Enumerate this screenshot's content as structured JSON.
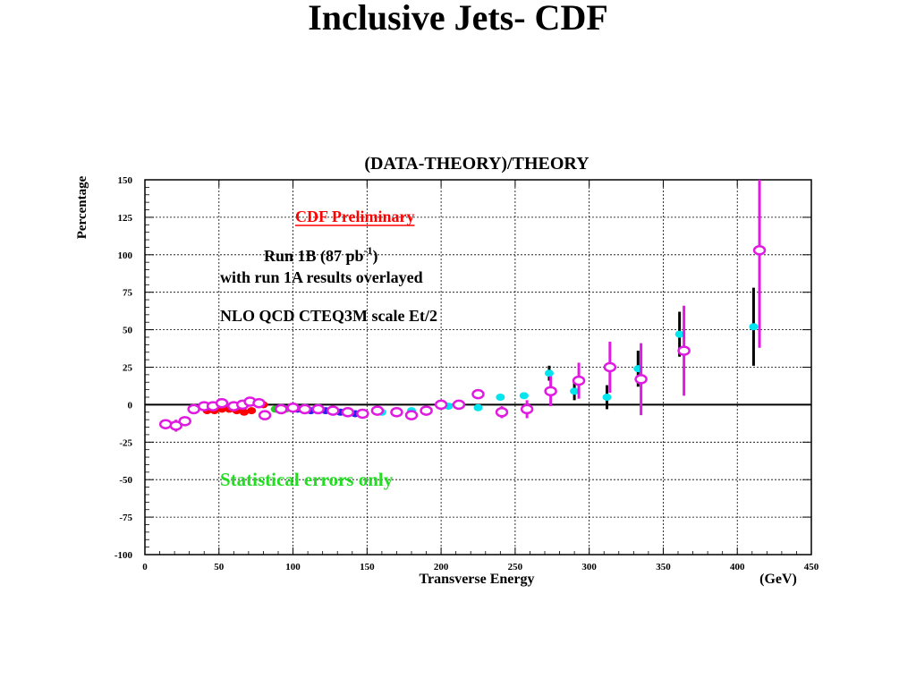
{
  "slide": {
    "title": "Inclusive Jets- CDF"
  },
  "colors": {
    "run1b_marker": "#00e5ee",
    "run1a_marker": "#e01ae0",
    "preliminary": "#ff0000",
    "statistical": "#22dd22"
  },
  "chart_data": {
    "type": "scatter",
    "title": "(DATA-THEORY)/THEORY",
    "xlabel": "Transverse Energy",
    "xunit": "(GeV)",
    "ylabel": "Percentage",
    "xlim": [
      0,
      450
    ],
    "ylim": [
      -100,
      150
    ],
    "x_ticks": [
      "0",
      "50",
      "100",
      "150",
      "200",
      "250",
      "300",
      "350",
      "400",
      "450"
    ],
    "y_ticks": [
      "-100",
      "-75",
      "-50",
      "-25",
      "0",
      "25",
      "50",
      "75",
      "100",
      "125",
      "150"
    ],
    "grid": true,
    "annotations": {
      "preliminary": "CDF Preliminary",
      "run_line_main": "Run 1B (87 pb",
      "run_line_sup": "-1",
      "run_line_end": ")",
      "overlay_note": "with run 1A results overlayed",
      "theory_note": "NLO QCD CTEQ3M  scale Et/2",
      "errors_note": "Statistical errors  only"
    },
    "series": [
      {
        "marker": "filled-circle",
        "points": [
          {
            "x": 42,
            "y": -4,
            "err": 2,
            "color": "#ff0000"
          },
          {
            "x": 47,
            "y": -4,
            "err": 2,
            "color": "#ff0000"
          },
          {
            "x": 52,
            "y": -3,
            "err": 2,
            "color": "#ff0000"
          },
          {
            "x": 57,
            "y": -3,
            "err": 2,
            "color": "#ff0000"
          },
          {
            "x": 62,
            "y": -4,
            "err": 2,
            "color": "#ff0000"
          },
          {
            "x": 67,
            "y": -5,
            "err": 2,
            "color": "#ff0000"
          },
          {
            "x": 72,
            "y": -4,
            "err": 2,
            "color": "#ff0000"
          },
          {
            "x": 77,
            "y": 1,
            "err": 2,
            "color": "#ff0000"
          },
          {
            "x": 80,
            "y": 0,
            "err": 2,
            "color": "#ff0000"
          },
          {
            "x": 88,
            "y": -3,
            "err": 1,
            "color": "#22cc22"
          },
          {
            "x": 95,
            "y": -3,
            "err": 1,
            "color": "#22cc22"
          },
          {
            "x": 103,
            "y": -3,
            "err": 1,
            "color": "#2222ee"
          },
          {
            "x": 112,
            "y": -4,
            "err": 1,
            "color": "#2222ee"
          },
          {
            "x": 122,
            "y": -4,
            "err": 1,
            "color": "#2222ee"
          },
          {
            "x": 132,
            "y": -5,
            "err": 1,
            "color": "#2222ee"
          },
          {
            "x": 142,
            "y": -6,
            "err": 1,
            "color": "#2222ee"
          },
          {
            "x": 160,
            "y": -5,
            "err": 1,
            "color": "#00e5ee"
          },
          {
            "x": 180,
            "y": -4,
            "err": 1,
            "color": "#00e5ee"
          },
          {
            "x": 205,
            "y": -1,
            "err": 1,
            "color": "#00e5ee"
          },
          {
            "x": 225,
            "y": -2,
            "err": 1,
            "color": "#00e5ee"
          },
          {
            "x": 240,
            "y": 5,
            "err": 1,
            "color": "#00e5ee"
          },
          {
            "x": 256,
            "y": 6,
            "err": 2,
            "color": "#00e5ee"
          },
          {
            "x": 273,
            "y": 21,
            "err": 5,
            "color": "#00e5ee"
          },
          {
            "x": 290,
            "y": 9,
            "err": 6,
            "color": "#00e5ee"
          },
          {
            "x": 312,
            "y": 5,
            "err": 8,
            "color": "#00e5ee"
          },
          {
            "x": 333,
            "y": 24,
            "err": 12,
            "color": "#00e5ee"
          },
          {
            "x": 361,
            "y": 47,
            "err": 15,
            "color": "#00e5ee"
          },
          {
            "x": 411,
            "y": 52,
            "err": 26,
            "color": "#00e5ee"
          }
        ]
      },
      {
        "marker": "open-circle",
        "points": [
          {
            "x": 14,
            "y": -13,
            "err": 2,
            "color": "#e01ae0"
          },
          {
            "x": 21,
            "y": -14,
            "err": 4,
            "color": "#e01ae0"
          },
          {
            "x": 27,
            "y": -11,
            "err": 3,
            "color": "#e01ae0"
          },
          {
            "x": 33,
            "y": -3,
            "err": 2,
            "color": "#e01ae0"
          },
          {
            "x": 40,
            "y": -1,
            "err": 2,
            "color": "#e01ae0"
          },
          {
            "x": 46,
            "y": -1,
            "err": 2,
            "color": "#e01ae0"
          },
          {
            "x": 52,
            "y": 1,
            "err": 2,
            "color": "#e01ae0"
          },
          {
            "x": 60,
            "y": -1,
            "err": 2,
            "color": "#e01ae0"
          },
          {
            "x": 66,
            "y": 0,
            "err": 2,
            "color": "#e01ae0"
          },
          {
            "x": 71,
            "y": 2,
            "err": 2,
            "color": "#e01ae0"
          },
          {
            "x": 77,
            "y": 1,
            "err": 2,
            "color": "#e01ae0"
          },
          {
            "x": 81,
            "y": -7,
            "err": 3,
            "color": "#e01ae0"
          },
          {
            "x": 92,
            "y": -3,
            "err": 2,
            "color": "#e01ae0"
          },
          {
            "x": 100,
            "y": -2,
            "err": 2,
            "color": "#e01ae0"
          },
          {
            "x": 108,
            "y": -3,
            "err": 2,
            "color": "#e01ae0"
          },
          {
            "x": 117,
            "y": -3,
            "err": 2,
            "color": "#e01ae0"
          },
          {
            "x": 127,
            "y": -4,
            "err": 2,
            "color": "#e01ae0"
          },
          {
            "x": 137,
            "y": -5,
            "err": 2,
            "color": "#e01ae0"
          },
          {
            "x": 147,
            "y": -6,
            "err": 2,
            "color": "#e01ae0"
          },
          {
            "x": 157,
            "y": -4,
            "err": 2,
            "color": "#e01ae0"
          },
          {
            "x": 170,
            "y": -5,
            "err": 2,
            "color": "#e01ae0"
          },
          {
            "x": 180,
            "y": -7,
            "err": 2,
            "color": "#e01ae0"
          },
          {
            "x": 190,
            "y": -4,
            "err": 2,
            "color": "#e01ae0"
          },
          {
            "x": 200,
            "y": 0,
            "err": 2,
            "color": "#e01ae0"
          },
          {
            "x": 212,
            "y": 0,
            "err": 2,
            "color": "#e01ae0"
          },
          {
            "x": 225,
            "y": 7,
            "err": 3,
            "color": "#e01ae0"
          },
          {
            "x": 241,
            "y": -5,
            "err": 4,
            "color": "#e01ae0"
          },
          {
            "x": 258,
            "y": -3,
            "err": 6,
            "color": "#e01ae0"
          },
          {
            "x": 274,
            "y": 9,
            "err": 10,
            "color": "#e01ae0"
          },
          {
            "x": 293,
            "y": 16,
            "err": 12,
            "color": "#e01ae0"
          },
          {
            "x": 314,
            "y": 25,
            "err": 17,
            "color": "#e01ae0"
          },
          {
            "x": 335,
            "y": 17,
            "err": 24,
            "color": "#e01ae0"
          },
          {
            "x": 364,
            "y": 36,
            "err": 30,
            "color": "#e01ae0"
          },
          {
            "x": 415,
            "y": 103,
            "err": 65,
            "color": "#e01ae0"
          }
        ]
      }
    ]
  }
}
